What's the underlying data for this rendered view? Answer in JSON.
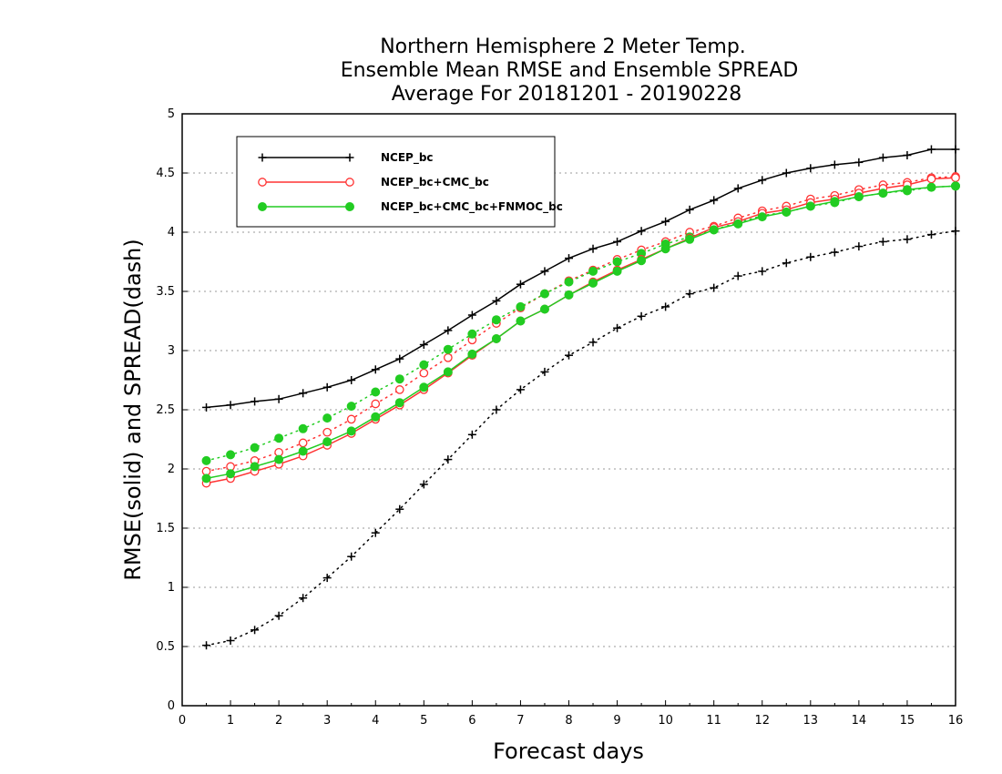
{
  "chart_data": {
    "type": "line",
    "title": [
      "Northern Hemisphere 2 Meter Temp.",
      "Ensemble Mean RMSE and Ensemble SPREAD",
      "Average For 20181201 - 20190228"
    ],
    "xlabel": "Forecast days",
    "ylabel": "RMSE(solid) and SPREAD(dash)",
    "xlim": [
      0,
      16
    ],
    "ylim": [
      0,
      5
    ],
    "xticks": [
      "0",
      "1",
      "2",
      "3",
      "4",
      "5",
      "6",
      "7",
      "8",
      "9",
      "10",
      "11",
      "12",
      "13",
      "14",
      "15",
      "16"
    ],
    "yticks": [
      "0",
      "0.5",
      "1",
      "1.5",
      "2",
      "2.5",
      "3",
      "3.5",
      "4",
      "4.5",
      "5"
    ],
    "grid": "horizontal-dotted",
    "legend_position": "top-left",
    "x": [
      0.5,
      1,
      1.5,
      2,
      2.5,
      3,
      3.5,
      4,
      4.5,
      5,
      5.5,
      6,
      6.5,
      7,
      7.5,
      8,
      8.5,
      9,
      9.5,
      10,
      10.5,
      11,
      11.5,
      12,
      12.5,
      13,
      13.5,
      14,
      14.5,
      15,
      15.5,
      16
    ],
    "series": [
      {
        "name": "NCEP_bc",
        "color": "#000000",
        "marker": "plus",
        "rmse": [
          2.52,
          2.54,
          2.57,
          2.59,
          2.64,
          2.69,
          2.75,
          2.84,
          2.93,
          3.05,
          3.17,
          3.3,
          3.42,
          3.56,
          3.67,
          3.78,
          3.86,
          3.92,
          4.01,
          4.09,
          4.19,
          4.27,
          4.37,
          4.44,
          4.5,
          4.54,
          4.57,
          4.59,
          4.63,
          4.65,
          4.7,
          4.7
        ],
        "spread": [
          0.51,
          0.55,
          0.64,
          0.76,
          0.91,
          1.08,
          1.26,
          1.46,
          1.66,
          1.87,
          2.08,
          2.29,
          2.5,
          2.67,
          2.82,
          2.96,
          3.07,
          3.19,
          3.29,
          3.37,
          3.48,
          3.53,
          3.63,
          3.67,
          3.74,
          3.79,
          3.83,
          3.88,
          3.92,
          3.94,
          3.98,
          4.01
        ]
      },
      {
        "name": "NCEP_bc+CMC_bc",
        "color": "#ff3333",
        "marker": "open-circle",
        "rmse": [
          1.88,
          1.92,
          1.98,
          2.04,
          2.11,
          2.2,
          2.3,
          2.42,
          2.54,
          2.67,
          2.81,
          2.96,
          3.1,
          3.25,
          3.35,
          3.47,
          3.58,
          3.68,
          3.77,
          3.86,
          3.95,
          4.04,
          4.09,
          4.16,
          4.19,
          4.25,
          4.28,
          4.33,
          4.37,
          4.4,
          4.45,
          4.46
        ],
        "spread": [
          1.98,
          2.02,
          2.07,
          2.14,
          2.22,
          2.31,
          2.42,
          2.55,
          2.67,
          2.81,
          2.94,
          3.09,
          3.23,
          3.36,
          3.48,
          3.59,
          3.68,
          3.77,
          3.85,
          3.92,
          4.0,
          4.05,
          4.12,
          4.18,
          4.22,
          4.28,
          4.31,
          4.36,
          4.4,
          4.42,
          4.46,
          4.47
        ]
      },
      {
        "name": "NCEP_bc+CMC_bc+FNMOC_bc",
        "color": "#22cc22",
        "marker": "filled-circle",
        "rmse": [
          1.92,
          1.96,
          2.02,
          2.08,
          2.15,
          2.23,
          2.32,
          2.44,
          2.56,
          2.69,
          2.82,
          2.97,
          3.1,
          3.25,
          3.35,
          3.47,
          3.57,
          3.67,
          3.76,
          3.86,
          3.94,
          4.02,
          4.07,
          4.13,
          4.17,
          4.22,
          4.26,
          4.3,
          4.33,
          4.36,
          4.38,
          4.39
        ],
        "spread": [
          2.07,
          2.12,
          2.18,
          2.26,
          2.34,
          2.43,
          2.53,
          2.65,
          2.76,
          2.88,
          3.01,
          3.14,
          3.26,
          3.37,
          3.48,
          3.58,
          3.67,
          3.75,
          3.82,
          3.9,
          3.96,
          4.02,
          4.08,
          4.14,
          4.17,
          4.22,
          4.25,
          4.3,
          4.33,
          4.35,
          4.38,
          4.39
        ]
      }
    ]
  }
}
